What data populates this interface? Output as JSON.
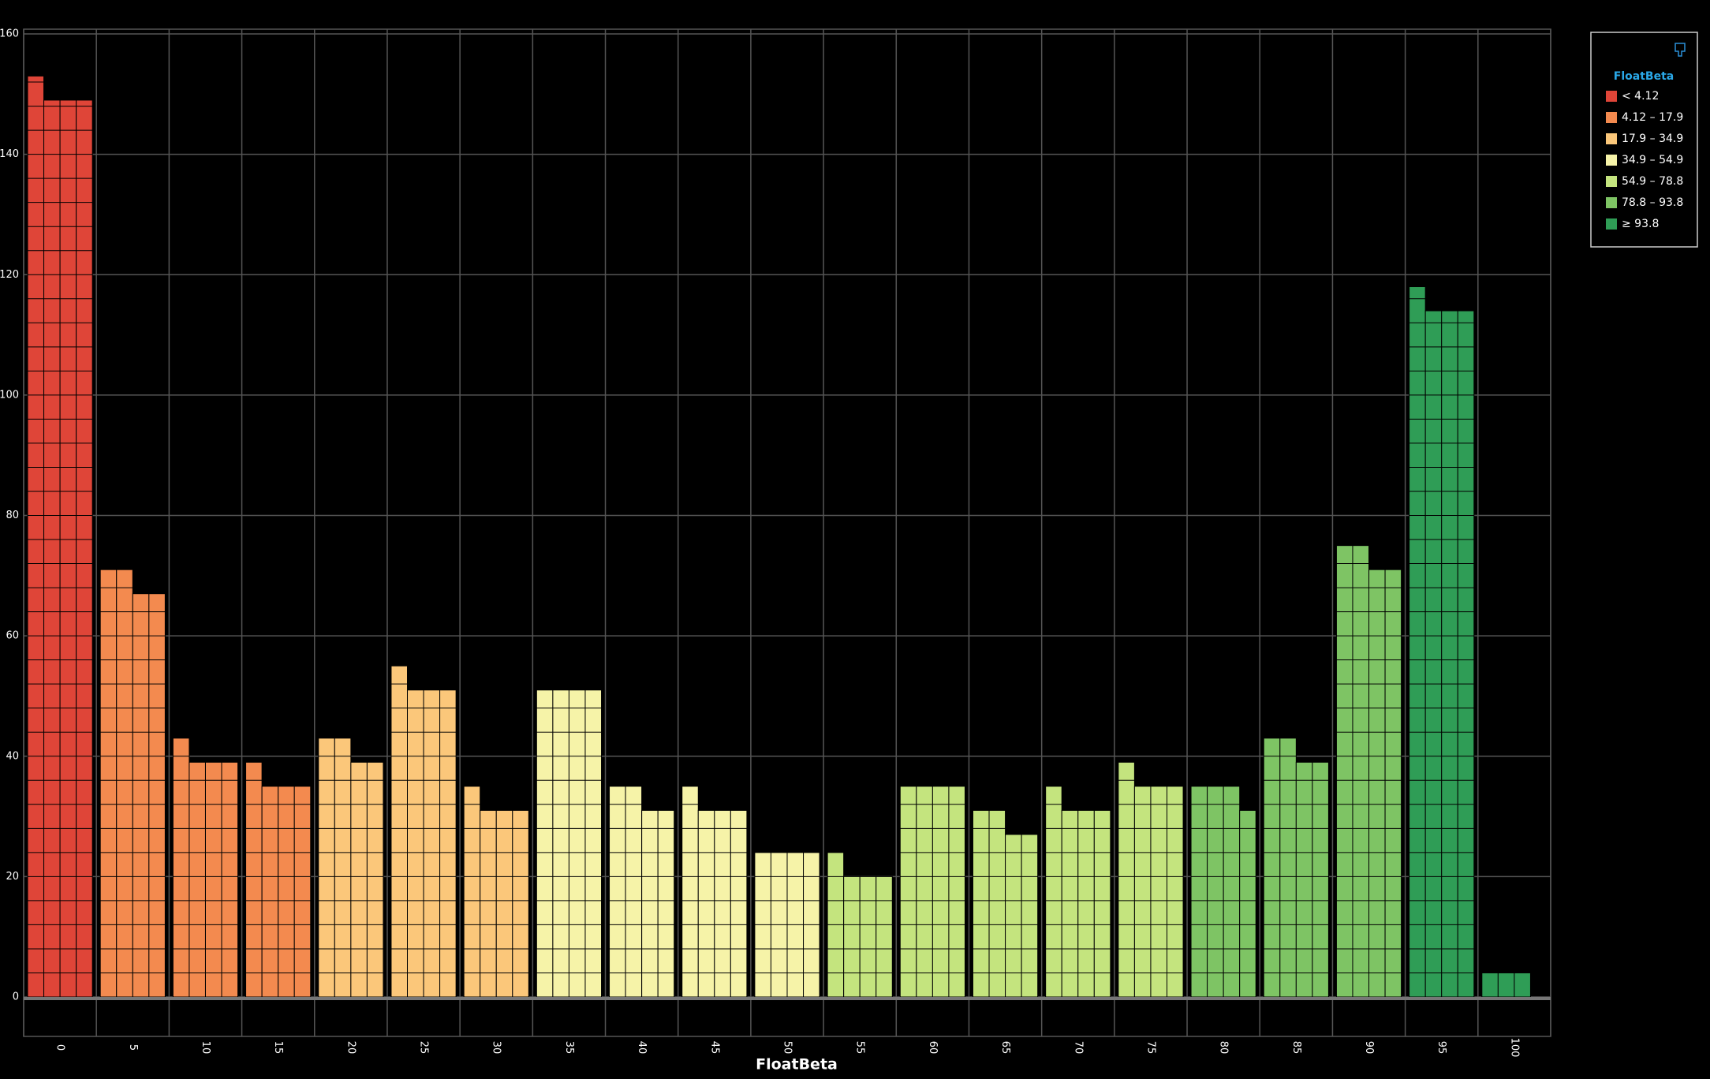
{
  "chart_data": {
    "type": "tilebar",
    "x_label": "FloatBeta",
    "categories": [
      "0",
      "5",
      "10",
      "15",
      "20",
      "25",
      "30",
      "35",
      "40",
      "45",
      "50",
      "55",
      "60",
      "65",
      "70",
      "75",
      "80",
      "85",
      "90",
      "95",
      "100"
    ],
    "values": [
      [
        153,
        149,
        149,
        149
      ],
      [
        71,
        71,
        67,
        67
      ],
      [
        43,
        39,
        39,
        39
      ],
      [
        39,
        35,
        35,
        35
      ],
      [
        43,
        43,
        39,
        39
      ],
      [
        55,
        51,
        51,
        51
      ],
      [
        35,
        31,
        31,
        31
      ],
      [
        51,
        51,
        51,
        51
      ],
      [
        35,
        35,
        31,
        31
      ],
      [
        35,
        31,
        31,
        31
      ],
      [
        24,
        24,
        24,
        24
      ],
      [
        24,
        20,
        20,
        20
      ],
      [
        35,
        35,
        35,
        35
      ],
      [
        31,
        31,
        27,
        27
      ],
      [
        35,
        31,
        31,
        31
      ],
      [
        39,
        35,
        35,
        35
      ],
      [
        35,
        35,
        35,
        31
      ],
      [
        43,
        43,
        39,
        39
      ],
      [
        75,
        75,
        71,
        71
      ],
      [
        118,
        114,
        114,
        114
      ],
      [
        4,
        4,
        4,
        0
      ]
    ],
    "colors": [
      "#df4538",
      "#f38a4f",
      "#f38a4f",
      "#f38a4f",
      "#fbc77a",
      "#fbc77a",
      "#fbc77a",
      "#f6f3a8",
      "#f6f3a8",
      "#f6f3a8",
      "#f6f3a8",
      "#c4e47e",
      "#c4e47e",
      "#c4e47e",
      "#c4e47e",
      "#c4e47e",
      "#7ec464",
      "#7ec464",
      "#7ec464",
      "#2f9d56",
      "#2f9d56"
    ],
    "ylim": [
      0,
      160
    ],
    "yticks": [
      0,
      20,
      40,
      60,
      80,
      100,
      120,
      140,
      160
    ],
    "grid": true,
    "legend": {
      "title": "FloatBeta",
      "items": [
        {
          "label": "< 4.12",
          "color": "#df4538"
        },
        {
          "label": "4.12 – 17.9",
          "color": "#f38a4f"
        },
        {
          "label": "17.9 – 34.9",
          "color": "#fbc77a"
        },
        {
          "label": "34.9 – 54.9",
          "color": "#f6f3a8"
        },
        {
          "label": "54.9 – 78.8",
          "color": "#c4e47e"
        },
        {
          "label": "78.8 – 93.8",
          "color": "#7ec464"
        },
        {
          "label": "≥ 93.8",
          "color": "#2f9d56"
        }
      ]
    }
  }
}
